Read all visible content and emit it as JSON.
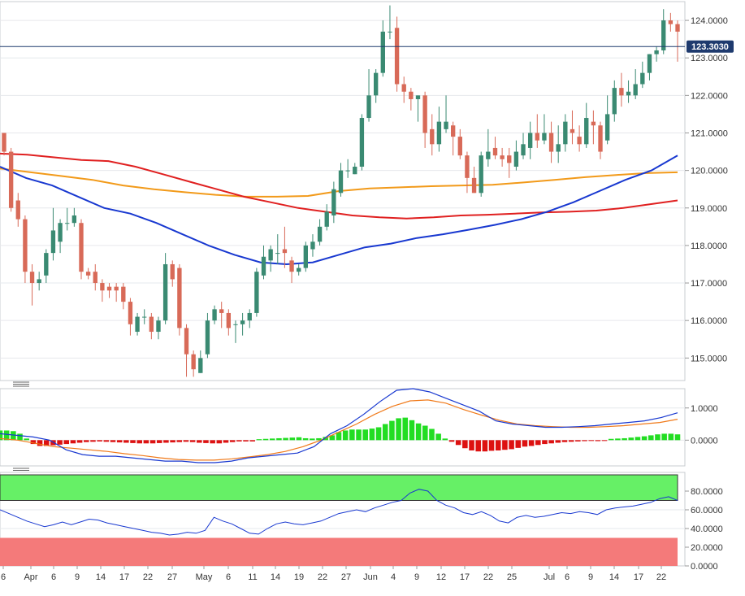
{
  "chart_data": {
    "type": "candlestick",
    "price_panel": {
      "current_price_label": "123.3030",
      "current_price": 123.303,
      "y_ticks": [
        "124.0000",
        "123.0000",
        "122.0000",
        "121.0000",
        "120.0000",
        "119.0000",
        "118.0000",
        "117.0000",
        "116.0000",
        "115.0000"
      ],
      "y_tick_values": [
        124,
        123,
        122,
        121,
        120,
        119,
        118,
        117,
        116,
        115
      ],
      "ylim": [
        114.4,
        124.5
      ],
      "colors": {
        "up": "#3a8a72",
        "down": "#d86a58",
        "ma_red": "#e02020",
        "ma_orange": "#f29a1a",
        "ma_blue": "#1838d0",
        "price_line": "#1e3a6e"
      },
      "candles": [
        [
          121.0,
          120.5,
          121.0,
          120.4
        ],
        [
          120.5,
          119.0,
          120.6,
          118.9
        ],
        [
          119.2,
          118.7,
          119.4,
          118.5
        ],
        [
          118.7,
          117.3,
          118.8,
          117.0
        ],
        [
          117.3,
          117.0,
          117.5,
          116.4
        ],
        [
          117.0,
          117.1,
          117.3,
          116.8
        ],
        [
          117.2,
          117.8,
          117.9,
          117.0
        ],
        [
          117.8,
          118.4,
          119.0,
          117.6
        ],
        [
          118.1,
          118.6,
          118.7,
          117.8
        ],
        [
          118.6,
          118.6,
          119.0,
          118.4
        ],
        [
          118.6,
          118.8,
          119.0,
          118.5
        ],
        [
          118.6,
          117.3,
          118.7,
          117.1
        ],
        [
          117.3,
          117.2,
          117.4,
          117.1
        ],
        [
          117.3,
          117.0,
          117.5,
          116.8
        ],
        [
          117.0,
          116.8,
          117.1,
          116.5
        ],
        [
          116.9,
          116.8,
          117.0,
          116.6
        ],
        [
          116.9,
          116.8,
          117.0,
          116.5
        ],
        [
          116.9,
          116.5,
          117.0,
          116.3
        ],
        [
          116.5,
          115.9,
          116.6,
          115.6
        ],
        [
          115.7,
          116.1,
          116.2,
          115.6
        ],
        [
          116.1,
          116.1,
          116.3,
          115.9
        ],
        [
          116.1,
          115.7,
          116.2,
          115.5
        ],
        [
          115.7,
          116.0,
          116.1,
          115.5
        ],
        [
          116.0,
          117.5,
          117.8,
          115.9
        ],
        [
          117.5,
          117.1,
          117.6,
          116.9
        ],
        [
          117.4,
          115.8,
          117.5,
          115.6
        ],
        [
          115.8,
          115.1,
          115.9,
          114.5
        ],
        [
          115.1,
          114.7,
          115.2,
          114.5
        ],
        [
          114.6,
          115.0,
          115.2,
          114.6
        ],
        [
          115.1,
          116.0,
          116.2,
          115.0
        ],
        [
          116.0,
          116.3,
          116.4,
          115.9
        ],
        [
          116.3,
          116.2,
          116.5,
          115.8
        ],
        [
          116.2,
          115.8,
          116.3,
          115.6
        ],
        [
          115.9,
          115.9,
          116.0,
          115.4
        ],
        [
          115.9,
          116.0,
          116.2,
          115.6
        ],
        [
          116.0,
          116.2,
          116.3,
          115.8
        ],
        [
          116.2,
          117.3,
          117.4,
          116.1
        ],
        [
          117.2,
          117.7,
          118.0,
          117.1
        ],
        [
          117.6,
          117.9,
          118.0,
          117.3
        ],
        [
          117.8,
          117.8,
          118.3,
          117.5
        ],
        [
          117.9,
          117.8,
          118.5,
          117.4
        ],
        [
          117.6,
          117.3,
          117.7,
          117.0
        ],
        [
          117.3,
          117.4,
          117.5,
          117.2
        ],
        [
          117.4,
          118.0,
          118.1,
          117.3
        ],
        [
          117.9,
          118.1,
          118.3,
          117.7
        ],
        [
          118.1,
          118.5,
          118.7,
          118.0
        ],
        [
          118.5,
          118.9,
          119.1,
          118.4
        ],
        [
          118.8,
          119.5,
          119.7,
          118.6
        ],
        [
          119.4,
          120.0,
          120.2,
          119.3
        ],
        [
          120.0,
          120.0,
          120.3,
          119.8
        ],
        [
          119.9,
          120.1,
          120.2,
          119.9
        ],
        [
          120.1,
          121.4,
          121.5,
          120.0
        ],
        [
          121.4,
          122.0,
          122.7,
          121.3
        ],
        [
          122.0,
          122.6,
          122.7,
          121.8
        ],
        [
          122.6,
          123.7,
          124.0,
          122.5
        ],
        [
          123.7,
          123.7,
          124.4,
          123.5
        ],
        [
          123.8,
          122.3,
          124.1,
          122.1
        ],
        [
          122.3,
          122.1,
          122.5,
          121.8
        ],
        [
          122.1,
          121.9,
          122.2,
          121.6
        ],
        [
          121.9,
          122.0,
          122.0,
          121.3
        ],
        [
          122.0,
          121.0,
          122.1,
          120.6
        ],
        [
          121.1,
          120.7,
          121.5,
          120.4
        ],
        [
          120.7,
          121.3,
          121.7,
          120.5
        ],
        [
          121.1,
          121.3,
          122.0,
          121.0
        ],
        [
          121.2,
          120.9,
          121.3,
          120.4
        ],
        [
          120.9,
          120.4,
          121.1,
          120.3
        ],
        [
          120.4,
          119.8,
          120.5,
          119.4
        ],
        [
          119.8,
          119.4,
          120.1,
          119.4
        ],
        [
          119.4,
          120.4,
          120.5,
          119.3
        ],
        [
          120.3,
          120.5,
          121.1,
          120.1
        ],
        [
          120.6,
          120.4,
          120.9,
          120.3
        ],
        [
          120.4,
          120.3,
          120.6,
          120.1
        ],
        [
          120.4,
          120.2,
          120.6,
          119.8
        ],
        [
          120.1,
          120.5,
          120.8,
          120.0
        ],
        [
          120.4,
          120.7,
          121.0,
          120.3
        ],
        [
          120.6,
          121.0,
          121.3,
          120.3
        ],
        [
          121.0,
          120.8,
          121.5,
          120.6
        ],
        [
          120.8,
          121.0,
          121.5,
          120.7
        ],
        [
          121.0,
          120.5,
          121.3,
          120.2
        ],
        [
          120.5,
          120.7,
          121.2,
          120.2
        ],
        [
          120.7,
          121.3,
          121.5,
          120.5
        ],
        [
          121.1,
          121.0,
          121.6,
          120.7
        ],
        [
          120.9,
          120.7,
          121.2,
          120.5
        ],
        [
          120.7,
          121.4,
          121.8,
          120.6
        ],
        [
          121.3,
          121.2,
          121.6,
          120.7
        ],
        [
          121.2,
          120.5,
          121.3,
          120.3
        ],
        [
          120.8,
          121.5,
          122.0,
          120.7
        ],
        [
          121.5,
          122.2,
          122.4,
          121.3
        ],
        [
          122.2,
          122.0,
          122.6,
          121.7
        ],
        [
          122.0,
          122.1,
          122.4,
          121.8
        ],
        [
          122.0,
          122.3,
          122.7,
          121.9
        ],
        [
          122.3,
          122.6,
          122.9,
          122.2
        ],
        [
          122.6,
          123.1,
          123.1,
          122.4
        ],
        [
          123.1,
          123.2,
          123.3,
          122.9
        ],
        [
          123.2,
          124.0,
          124.3,
          123.1
        ],
        [
          124.0,
          123.9,
          124.2,
          123.7
        ],
        [
          123.9,
          123.7,
          124.0,
          122.9
        ]
      ],
      "ma_red": [
        120.45,
        120.42,
        120.35,
        120.28,
        120.25,
        120.1,
        119.9,
        119.7,
        119.5,
        119.3,
        119.15,
        119.0,
        118.9,
        118.8,
        118.75,
        118.72,
        118.75,
        118.8,
        118.82,
        118.85,
        118.88,
        118.9,
        118.93,
        119.0,
        119.1,
        119.2
      ],
      "ma_orange": [
        120.05,
        119.95,
        119.85,
        119.75,
        119.6,
        119.5,
        119.42,
        119.35,
        119.3,
        119.3,
        119.32,
        119.45,
        119.52,
        119.55,
        119.58,
        119.6,
        119.62,
        119.68,
        119.75,
        119.82,
        119.88,
        119.93,
        119.95
      ],
      "ma_blue": [
        120.1,
        119.8,
        119.6,
        119.3,
        119.0,
        118.85,
        118.6,
        118.3,
        118.0,
        117.75,
        117.55,
        117.5,
        117.55,
        117.75,
        117.95,
        118.05,
        118.2,
        118.3,
        118.42,
        118.55,
        118.7,
        118.9,
        119.15,
        119.45,
        119.75,
        120.0,
        120.4
      ]
    },
    "macd_panel": {
      "y_ticks": [
        "1.0000",
        "0.0000"
      ],
      "y_tick_values": [
        1,
        0
      ],
      "ylim": [
        -0.8,
        1.6
      ],
      "histogram": [
        0.3,
        0.3,
        0.28,
        0.2,
        0.05,
        -0.12,
        -0.18,
        -0.18,
        -0.16,
        -0.14,
        -0.12,
        -0.1,
        -0.08,
        -0.06,
        -0.05,
        -0.04,
        -0.05,
        -0.06,
        -0.07,
        -0.08,
        -0.09,
        -0.1,
        -0.1,
        -0.1,
        -0.09,
        -0.08,
        -0.07,
        -0.06,
        -0.05,
        -0.06,
        -0.08,
        -0.09,
        -0.1,
        -0.1,
        -0.08,
        -0.06,
        -0.04,
        -0.04,
        -0.04,
        0.03,
        0.04,
        0.05,
        0.06,
        0.07,
        0.08,
        0.09,
        0.06,
        0.05,
        0.06,
        0.1,
        0.15,
        0.25,
        0.3,
        0.33,
        0.33,
        0.33,
        0.36,
        0.4,
        0.5,
        0.6,
        0.68,
        0.7,
        0.62,
        0.52,
        0.45,
        0.35,
        0.2,
        0.05,
        -0.05,
        -0.15,
        -0.25,
        -0.32,
        -0.35,
        -0.35,
        -0.33,
        -0.32,
        -0.3,
        -0.28,
        -0.24,
        -0.2,
        -0.18,
        -0.15,
        -0.12,
        -0.1,
        -0.08,
        -0.06,
        -0.05,
        -0.04,
        -0.03,
        -0.02,
        -0.03,
        -0.02,
        0.04,
        0.05,
        0.06,
        0.08,
        0.1,
        0.12,
        0.15,
        0.18,
        0.2,
        0.2,
        0.18
      ],
      "macd_line": [
        0.2,
        0.15,
        0.1,
        0.0,
        -0.3,
        -0.45,
        -0.5,
        -0.5,
        -0.55,
        -0.6,
        -0.65,
        -0.65,
        -0.7,
        -0.7,
        -0.65,
        -0.55,
        -0.5,
        -0.45,
        -0.4,
        -0.2,
        0.2,
        0.45,
        0.8,
        1.2,
        1.55,
        1.6,
        1.5,
        1.3,
        1.1,
        0.9,
        0.6,
        0.5,
        0.45,
        0.4,
        0.4,
        0.42,
        0.45,
        0.5,
        0.55,
        0.6,
        0.7,
        0.85
      ],
      "signal_line": [
        0.05,
        0.0,
        -0.1,
        -0.2,
        -0.25,
        -0.3,
        -0.35,
        -0.42,
        -0.48,
        -0.55,
        -0.6,
        -0.62,
        -0.62,
        -0.58,
        -0.52,
        -0.45,
        -0.35,
        -0.2,
        0.0,
        0.25,
        0.5,
        0.8,
        1.05,
        1.22,
        1.25,
        1.15,
        0.95,
        0.78,
        0.62,
        0.5,
        0.45,
        0.42,
        0.4,
        0.4,
        0.42,
        0.45,
        0.5,
        0.55,
        0.65
      ],
      "colors": {
        "hist_up": "#22dd22",
        "hist_down": "#dd1111",
        "macd": "#1838d0",
        "signal": "#f07a1a"
      }
    },
    "rsi_panel": {
      "y_ticks": [
        "80.0000",
        "60.0000",
        "40.0000",
        "20.0000",
        "0.0000"
      ],
      "y_tick_values": [
        80,
        60,
        40,
        20,
        0
      ],
      "ylim": [
        0,
        100
      ],
      "overbought": 70,
      "oversold": 30,
      "rsi": [
        60,
        56,
        52,
        48,
        45,
        42,
        44,
        47,
        44,
        47,
        50,
        49,
        46,
        44,
        42,
        40,
        38,
        36,
        35,
        33,
        34,
        36,
        35,
        38,
        52,
        48,
        45,
        40,
        35,
        34,
        40,
        45,
        47,
        45,
        44,
        46,
        48,
        52,
        56,
        58,
        60,
        58,
        62,
        65,
        68,
        70,
        78,
        82,
        80,
        70,
        65,
        62,
        57,
        55,
        58,
        54,
        48,
        46,
        52,
        54,
        52,
        53,
        55,
        57,
        56,
        58,
        57,
        55,
        60,
        62,
        63,
        64,
        66,
        68,
        72,
        74,
        70
      ],
      "colors": {
        "line": "#1838d0",
        "overbought_fill": "#66f066",
        "oversold_fill": "#f47a7a"
      }
    },
    "x_tick_labels": [
      "6",
      "Apr",
      "6",
      "9",
      "14",
      "17",
      "22",
      "27",
      "May",
      "6",
      "11",
      "14",
      "19",
      "22",
      "27",
      "Jun",
      "4",
      "9",
      "12",
      "17",
      "22",
      "25",
      "Jul",
      "6",
      "9",
      "14",
      "17",
      "22"
    ],
    "grid": true
  }
}
